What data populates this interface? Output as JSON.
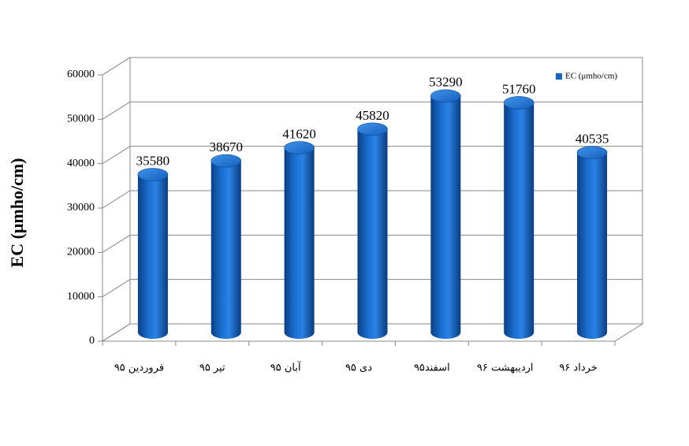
{
  "chart_data": {
    "type": "bar",
    "y_label": "EC (μmho/cm)",
    "categories": [
      "فروردین ۹۵",
      "تیر ۹۵",
      "آبان ۹۵",
      "دی ۹۵",
      "اسفند۹۵",
      "اردیبهشت ۹۶",
      "خرداد ۹۶"
    ],
    "series": [
      {
        "name": "EC (μmho/cm)",
        "color": "#1467c8",
        "values": [
          35580,
          38670,
          41620,
          45820,
          53290,
          51760,
          40535
        ]
      }
    ],
    "ylim": [
      0,
      60000
    ],
    "yticks": [
      0,
      10000,
      20000,
      30000,
      40000,
      50000,
      60000
    ],
    "grid": true,
    "legend": "upper right"
  }
}
